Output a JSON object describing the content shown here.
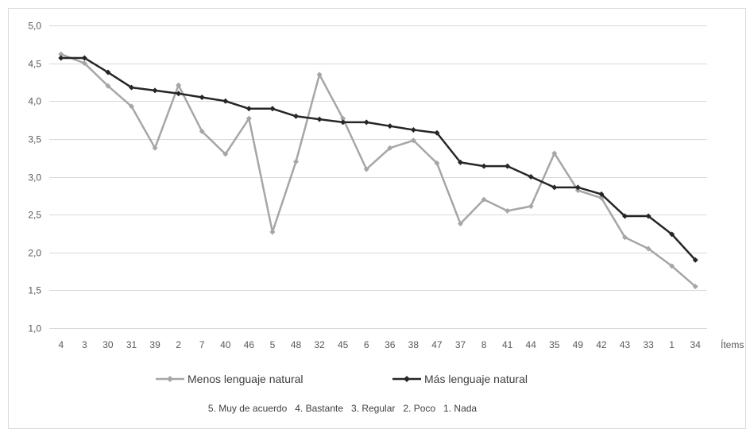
{
  "chart_data": {
    "type": "line",
    "xlabel": "Ítems",
    "ylim": [
      1.0,
      5.0
    ],
    "yticks": [
      "1,0",
      "1,5",
      "2,0",
      "2,5",
      "3,0",
      "3,5",
      "4,0",
      "4,5",
      "5,0"
    ],
    "grid": true,
    "legend_position": "bottom",
    "categories": [
      "4",
      "3",
      "30",
      "31",
      "39",
      "2",
      "7",
      "40",
      "46",
      "5",
      "48",
      "32",
      "45",
      "6",
      "36",
      "38",
      "47",
      "37",
      "8",
      "41",
      "44",
      "35",
      "49",
      "42",
      "43",
      "33",
      "1",
      "34"
    ],
    "series": [
      {
        "name": "Menos lenguaje natural",
        "color": "#a6a6a6",
        "marker": "diamond",
        "values": [
          4.62,
          4.5,
          4.2,
          3.93,
          3.38,
          4.21,
          3.6,
          3.3,
          3.77,
          2.27,
          3.2,
          4.35,
          3.77,
          3.1,
          3.38,
          3.48,
          3.18,
          2.38,
          2.7,
          2.55,
          2.61,
          3.31,
          2.82,
          2.72,
          2.2,
          2.05,
          1.82,
          1.55
        ]
      },
      {
        "name": "Más lenguaje natural",
        "color": "#262626",
        "marker": "diamond",
        "values": [
          4.57,
          4.57,
          4.38,
          4.18,
          4.14,
          4.1,
          4.05,
          4.0,
          3.9,
          3.9,
          3.8,
          3.76,
          3.72,
          3.72,
          3.67,
          3.62,
          3.58,
          3.19,
          3.14,
          3.14,
          3.0,
          2.86,
          2.86,
          2.77,
          2.48,
          2.48,
          2.24,
          1.9
        ]
      }
    ],
    "note": "5. Muy de acuerdo   4. Bastante   3. Regular   2. Poco   1. Nada"
  }
}
